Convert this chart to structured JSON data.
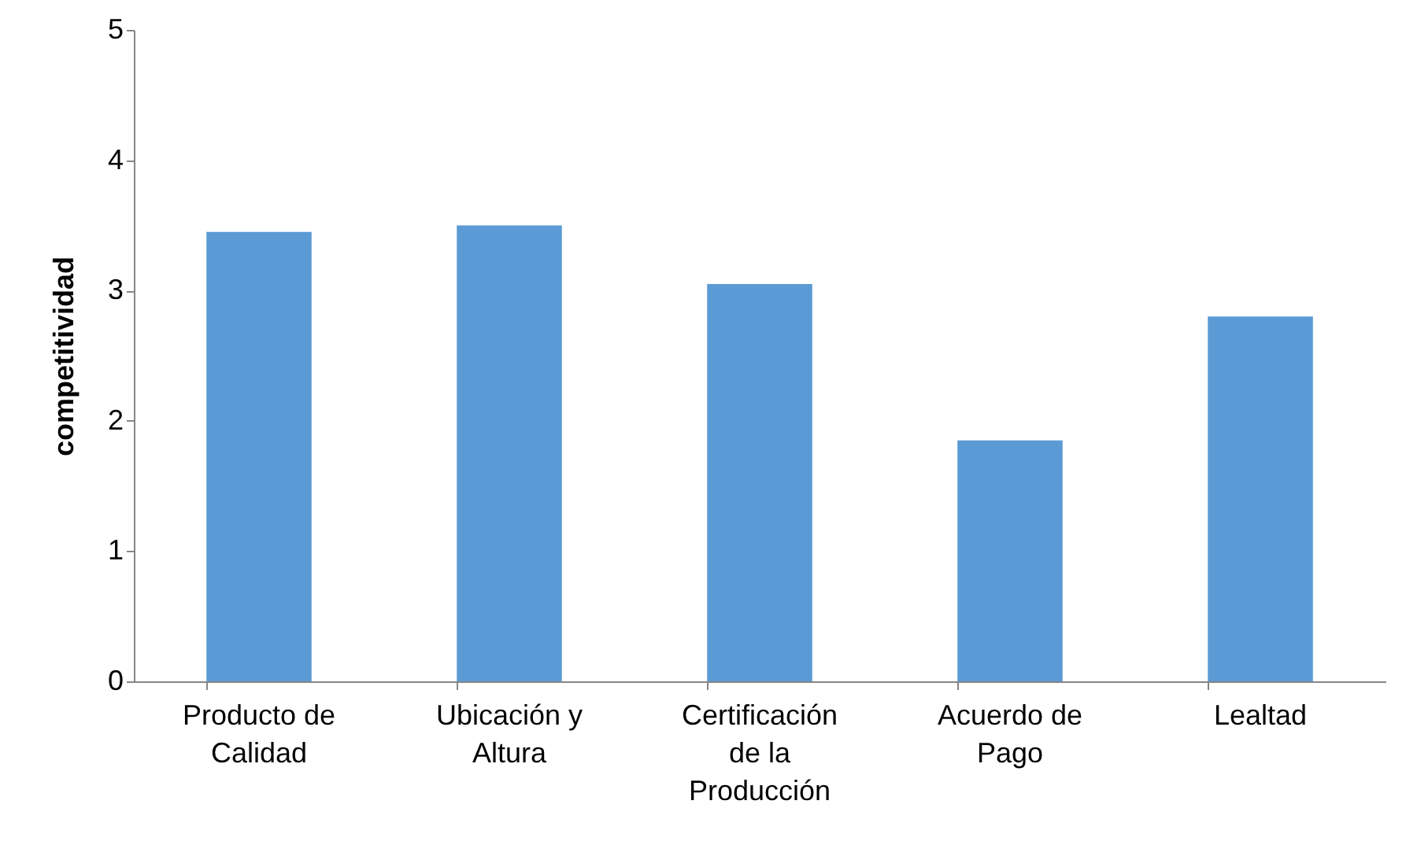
{
  "chart_data": {
    "type": "bar",
    "ylabel": "competitividad",
    "categories": [
      "Producto de Calidad",
      "Ubicación y Altura",
      "Certificación de la Producción",
      "Acuerdo de Pago",
      "Lealtad"
    ],
    "values": [
      3.45,
      3.5,
      3.05,
      1.85,
      2.8
    ],
    "color": "#5b9bd5",
    "ylim": [
      0,
      5
    ],
    "yticks": [
      0,
      1,
      2,
      3,
      4,
      5
    ],
    "grid": false
  }
}
